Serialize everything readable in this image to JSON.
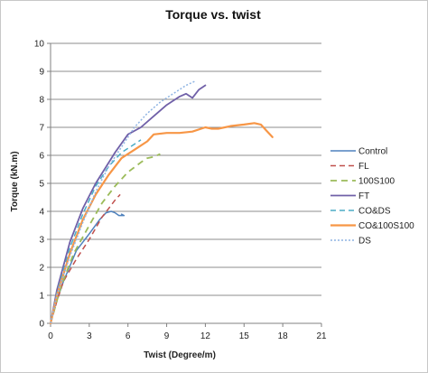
{
  "chart_data": {
    "type": "line",
    "title": "Torque vs. twist",
    "xlabel": "Twist (Degree/m)",
    "ylabel": "Torque (kN.m)",
    "xlim": [
      0,
      21
    ],
    "ylim": [
      0,
      10
    ],
    "xticks": [
      0,
      3,
      6,
      9,
      12,
      15,
      18,
      21
    ],
    "yticks": [
      0,
      1,
      2,
      3,
      4,
      5,
      6,
      7,
      8,
      9,
      10
    ],
    "grid": "horizontal",
    "legend_position": "right",
    "series": [
      {
        "name": "Control",
        "color": "#4f81bd",
        "dash": "solid",
        "width": 1.5,
        "points": [
          [
            0,
            0
          ],
          [
            0.4,
            0.7
          ],
          [
            1,
            1.5
          ],
          [
            2,
            2.6
          ],
          [
            3,
            3.2
          ],
          [
            3.8,
            3.7
          ],
          [
            4.3,
            3.95
          ],
          [
            4.7,
            4.0
          ],
          [
            5,
            3.95
          ],
          [
            5.3,
            3.85
          ],
          [
            5.7,
            3.85
          ],
          [
            5.5,
            3.9
          ]
        ]
      },
      {
        "name": "FL",
        "color": "#c0504d",
        "dash": "6,4",
        "width": 1.5,
        "points": [
          [
            0,
            0
          ],
          [
            0.5,
            0.8
          ],
          [
            1,
            1.5
          ],
          [
            2,
            2.3
          ],
          [
            3,
            3.0
          ],
          [
            4,
            3.8
          ],
          [
            4.5,
            4.1
          ],
          [
            5,
            4.4
          ],
          [
            5.4,
            4.6
          ]
        ]
      },
      {
        "name": "100S100",
        "color": "#9bbb59",
        "dash": "7,5",
        "width": 1.8,
        "points": [
          [
            0,
            0
          ],
          [
            0.8,
            1.3
          ],
          [
            1.8,
            2.5
          ],
          [
            3,
            3.5
          ],
          [
            4,
            4.3
          ],
          [
            5,
            4.9
          ],
          [
            6,
            5.4
          ],
          [
            7,
            5.75
          ],
          [
            7.5,
            5.9
          ],
          [
            8,
            5.95
          ],
          [
            8.5,
            6.05
          ]
        ]
      },
      {
        "name": "FT",
        "color": "#7060a8",
        "dash": "solid",
        "width": 1.8,
        "points": [
          [
            0,
            0
          ],
          [
            0.5,
            1.2
          ],
          [
            1.5,
            2.9
          ],
          [
            2.5,
            4.1
          ],
          [
            3.5,
            5.0
          ],
          [
            5,
            6.1
          ],
          [
            6,
            6.75
          ],
          [
            7,
            7.0
          ],
          [
            8,
            7.4
          ],
          [
            9,
            7.8
          ],
          [
            10,
            8.1
          ],
          [
            10.5,
            8.2
          ],
          [
            11,
            8.05
          ],
          [
            11.5,
            8.35
          ],
          [
            12,
            8.5
          ]
        ]
      },
      {
        "name": "CO&DS",
        "color": "#4bacc6",
        "dash": "6,4",
        "width": 1.5,
        "points": [
          [
            0,
            0
          ],
          [
            0.5,
            1.1
          ],
          [
            1.5,
            2.7
          ],
          [
            2.5,
            3.9
          ],
          [
            3.5,
            4.9
          ],
          [
            4.5,
            5.6
          ],
          [
            5.5,
            6.1
          ],
          [
            6.5,
            6.4
          ],
          [
            7,
            6.55
          ]
        ]
      },
      {
        "name": "CO&100S100",
        "color": "#f79646",
        "dash": "solid",
        "width": 2.2,
        "points": [
          [
            0,
            0
          ],
          [
            0.5,
            1.0
          ],
          [
            1.5,
            2.5
          ],
          [
            2.5,
            3.7
          ],
          [
            3.5,
            4.6
          ],
          [
            4.5,
            5.3
          ],
          [
            5.5,
            5.9
          ],
          [
            6.5,
            6.2
          ],
          [
            7.5,
            6.5
          ],
          [
            8,
            6.75
          ],
          [
            9,
            6.8
          ],
          [
            10,
            6.8
          ],
          [
            11,
            6.85
          ],
          [
            12,
            7.0
          ],
          [
            12.5,
            6.95
          ],
          [
            13,
            6.95
          ],
          [
            14,
            7.05
          ],
          [
            15,
            7.1
          ],
          [
            15.8,
            7.15
          ],
          [
            16.3,
            7.1
          ],
          [
            16.7,
            6.9
          ],
          [
            17.2,
            6.65
          ]
        ]
      },
      {
        "name": "DS",
        "color": "#8eb4e3",
        "dash": "2,2",
        "width": 1.5,
        "points": [
          [
            0,
            0
          ],
          [
            0.5,
            1.0
          ],
          [
            1.5,
            2.4
          ],
          [
            2.5,
            3.6
          ],
          [
            3.5,
            4.7
          ],
          [
            4.5,
            5.6
          ],
          [
            5.5,
            6.3
          ],
          [
            6.5,
            7.0
          ],
          [
            7.5,
            7.5
          ],
          [
            8.5,
            7.9
          ],
          [
            9.5,
            8.2
          ],
          [
            10.5,
            8.5
          ],
          [
            11.2,
            8.65
          ]
        ]
      }
    ]
  }
}
